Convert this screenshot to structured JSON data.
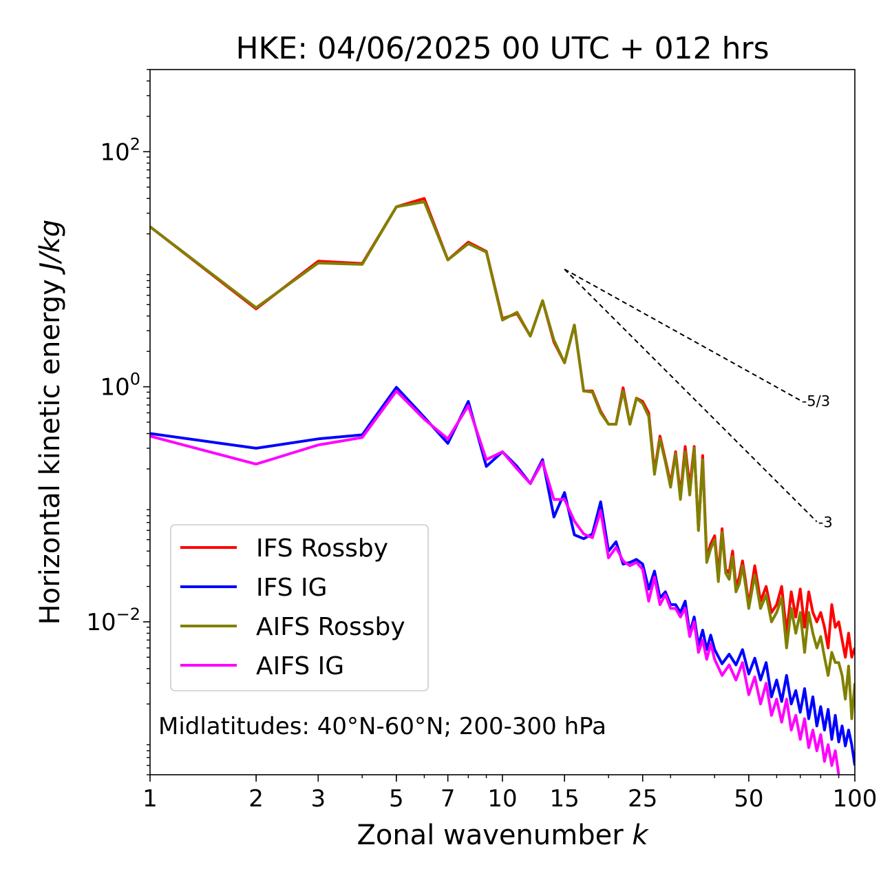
{
  "chart_data": {
    "type": "line",
    "title": "HKE: 04/06/2025 00 UTC + 012 hrs",
    "xlabel": "Zonal wavenumber",
    "xlabel_var": "k",
    "ylabel": "Horizontal kinetic energy",
    "ylabel_units": "J/kg",
    "xscale": "log",
    "yscale": "log",
    "xlim": [
      1,
      100
    ],
    "ylim": [
      0.0005,
      500
    ],
    "x_ticks": [
      1,
      2,
      3,
      5,
      7,
      10,
      15,
      25,
      50,
      100
    ],
    "x_tick_labels": [
      "1",
      "2",
      "3",
      "5",
      "7",
      "10",
      "15",
      "25",
      "50",
      "100"
    ],
    "y_ticks": [
      0.01,
      1,
      100
    ],
    "y_tick_labels": [
      {
        "base": "10",
        "exp": "−2"
      },
      {
        "base": "10",
        "exp": "0"
      },
      {
        "base": "10",
        "exp": "2"
      }
    ],
    "annotation": "Midlatitudes: 40°N-60°N; 200-300 hPa",
    "legend_position": "lower-left",
    "series": [
      {
        "name": "IFS Rossby",
        "color": "#ff0000",
        "x": [
          1,
          2,
          3,
          4,
          5,
          6,
          7,
          8,
          9,
          10,
          11,
          12,
          13,
          14,
          15,
          16,
          17,
          18,
          19,
          20,
          21,
          22,
          23,
          24,
          25,
          26,
          27,
          28,
          29,
          30,
          31,
          32,
          33,
          34,
          35,
          36,
          37,
          38,
          39,
          40,
          41,
          42,
          43,
          44,
          45,
          46,
          47,
          48,
          49,
          50,
          52,
          54,
          56,
          58,
          60,
          62,
          64,
          66,
          68,
          70,
          72,
          74,
          76,
          78,
          80,
          82,
          84,
          86,
          88,
          90,
          92,
          94,
          96,
          98,
          100
        ],
        "y": [
          23,
          4.6,
          11.7,
          11.2,
          34,
          40,
          12,
          17,
          14.2,
          3.8,
          4.2,
          2.7,
          5.4,
          2.4,
          1.6,
          3.35,
          0.92,
          0.92,
          0.62,
          0.48,
          0.48,
          0.98,
          0.48,
          0.8,
          0.75,
          0.6,
          0.19,
          0.38,
          0.24,
          0.15,
          0.28,
          0.12,
          0.31,
          0.14,
          0.31,
          0.06,
          0.26,
          0.035,
          0.046,
          0.054,
          0.025,
          0.062,
          0.028,
          0.026,
          0.04,
          0.02,
          0.024,
          0.033,
          0.022,
          0.014,
          0.03,
          0.015,
          0.02,
          0.012,
          0.014,
          0.02,
          0.008,
          0.018,
          0.011,
          0.019,
          0.009,
          0.018,
          0.012,
          0.01,
          0.012,
          0.009,
          0.006,
          0.014,
          0.009,
          0.01,
          0.007,
          0.005,
          0.008,
          0.005,
          0.006
        ]
      },
      {
        "name": "IFS IG",
        "color": "#0000ff",
        "x": [
          1,
          2,
          3,
          4,
          5,
          6,
          7,
          8,
          9,
          10,
          11,
          12,
          13,
          14,
          15,
          16,
          17,
          18,
          19,
          20,
          21,
          22,
          23,
          24,
          25,
          26,
          27,
          28,
          29,
          30,
          31,
          32,
          33,
          34,
          35,
          36,
          37,
          38,
          39,
          40,
          42,
          44,
          46,
          48,
          50,
          52,
          54,
          56,
          58,
          60,
          62,
          64,
          66,
          68,
          70,
          72,
          74,
          76,
          78,
          80,
          82,
          84,
          86,
          88,
          90,
          92,
          94,
          96,
          98,
          100
        ],
        "y": [
          0.4,
          0.3,
          0.36,
          0.39,
          0.99,
          0.55,
          0.33,
          0.75,
          0.21,
          0.28,
          0.21,
          0.15,
          0.24,
          0.078,
          0.126,
          0.055,
          0.051,
          0.056,
          0.105,
          0.04,
          0.048,
          0.031,
          0.032,
          0.034,
          0.031,
          0.019,
          0.027,
          0.016,
          0.018,
          0.014,
          0.014,
          0.012,
          0.015,
          0.008,
          0.011,
          0.0063,
          0.0085,
          0.0058,
          0.0077,
          0.0058,
          0.0044,
          0.0053,
          0.0043,
          0.0058,
          0.0036,
          0.0049,
          0.0032,
          0.0045,
          0.0023,
          0.0032,
          0.0021,
          0.0035,
          0.002,
          0.0026,
          0.0017,
          0.0027,
          0.0015,
          0.0023,
          0.0013,
          0.0019,
          0.0012,
          0.0018,
          0.001,
          0.0016,
          0.00095,
          0.0013,
          0.00088,
          0.0012,
          0.0009,
          0.0006
        ]
      },
      {
        "name": "AIFS Rossby",
        "color": "#808000",
        "x": [
          1,
          2,
          3,
          4,
          5,
          6,
          7,
          8,
          9,
          10,
          11,
          12,
          13,
          14,
          15,
          16,
          17,
          18,
          19,
          20,
          21,
          22,
          23,
          24,
          25,
          26,
          27,
          28,
          29,
          30,
          31,
          32,
          33,
          34,
          35,
          36,
          37,
          38,
          39,
          40,
          41,
          42,
          43,
          44,
          45,
          46,
          47,
          48,
          49,
          50,
          52,
          54,
          56,
          58,
          60,
          62,
          64,
          66,
          68,
          70,
          72,
          74,
          76,
          78,
          80,
          82,
          84,
          86,
          88,
          90,
          92,
          94,
          96,
          98,
          100
        ],
        "y": [
          23,
          4.7,
          11.3,
          11,
          34,
          37.5,
          12,
          16.5,
          14,
          3.7,
          4.3,
          2.7,
          5.4,
          2.5,
          1.6,
          3.35,
          0.92,
          0.9,
          0.6,
          0.48,
          0.48,
          0.92,
          0.48,
          0.8,
          0.72,
          0.56,
          0.18,
          0.36,
          0.23,
          0.14,
          0.27,
          0.11,
          0.28,
          0.12,
          0.3,
          0.06,
          0.24,
          0.032,
          0.042,
          0.05,
          0.022,
          0.058,
          0.026,
          0.023,
          0.036,
          0.018,
          0.021,
          0.03,
          0.02,
          0.013,
          0.025,
          0.013,
          0.017,
          0.01,
          0.012,
          0.016,
          0.006,
          0.013,
          0.008,
          0.012,
          0.0055,
          0.012,
          0.008,
          0.006,
          0.0075,
          0.005,
          0.0035,
          0.0055,
          0.0045,
          0.0045,
          0.0035,
          0.0022,
          0.0042,
          0.0015,
          0.003
        ]
      },
      {
        "name": "AIFS IG",
        "color": "#ff00ff",
        "x": [
          1,
          2,
          3,
          4,
          5,
          6,
          7,
          8,
          9,
          10,
          11,
          12,
          13,
          14,
          15,
          16,
          17,
          18,
          19,
          20,
          21,
          22,
          23,
          24,
          25,
          26,
          27,
          28,
          29,
          30,
          31,
          32,
          33,
          34,
          35,
          36,
          37,
          38,
          39,
          40,
          42,
          44,
          46,
          48,
          50,
          52,
          54,
          56,
          58,
          60,
          62,
          64,
          66,
          68,
          70,
          72,
          74,
          76,
          78,
          80,
          82,
          84,
          86,
          88,
          90
        ],
        "y": [
          0.38,
          0.22,
          0.32,
          0.37,
          0.92,
          0.53,
          0.36,
          0.69,
          0.24,
          0.28,
          0.2,
          0.15,
          0.23,
          0.11,
          0.11,
          0.072,
          0.056,
          0.052,
          0.088,
          0.035,
          0.043,
          0.033,
          0.03,
          0.032,
          0.028,
          0.015,
          0.024,
          0.014,
          0.017,
          0.013,
          0.013,
          0.011,
          0.013,
          0.0075,
          0.01,
          0.0055,
          0.007,
          0.0048,
          0.0065,
          0.0048,
          0.0035,
          0.0043,
          0.0032,
          0.0045,
          0.0024,
          0.0034,
          0.002,
          0.003,
          0.0016,
          0.0022,
          0.0014,
          0.0022,
          0.0012,
          0.0016,
          0.001,
          0.0015,
          0.00085,
          0.0012,
          0.0008,
          0.0011,
          0.00065,
          0.0009,
          0.0006,
          0.0008,
          0.0005
        ]
      }
    ],
    "reference_lines": [
      {
        "label": "-5/3",
        "slope": -1.6667,
        "x_start": 15,
        "y_start": 10,
        "x_end": 70,
        "color": "#000000",
        "style": "dashed"
      },
      {
        "label": "-3",
        "slope": -3,
        "x_start": 15,
        "y_start": 10,
        "x_end": 78,
        "color": "#000000",
        "style": "dashed"
      }
    ],
    "grid": false
  }
}
